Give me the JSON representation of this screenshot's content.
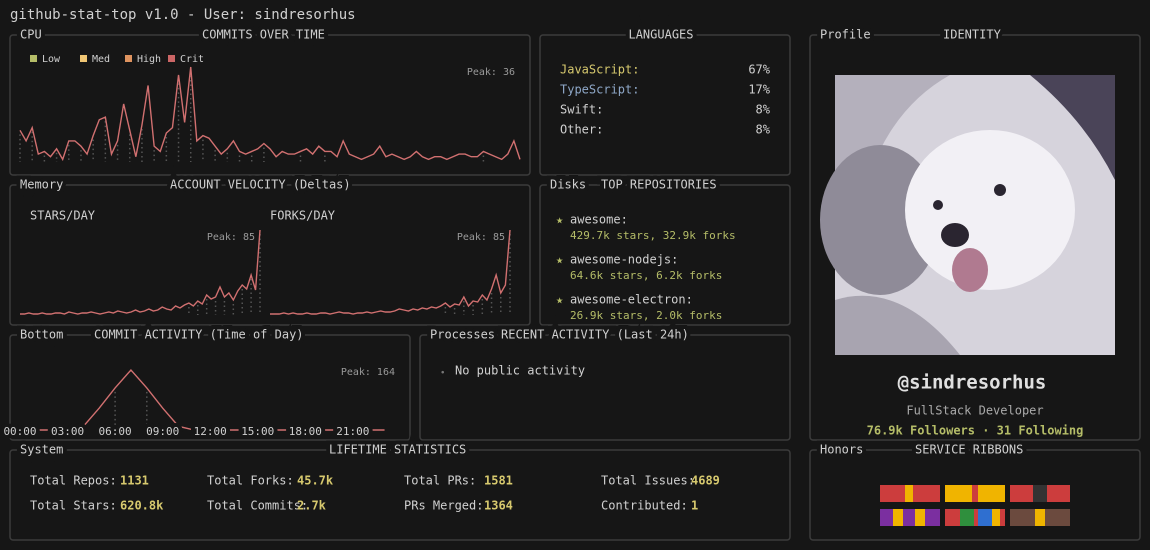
{
  "header": {
    "title": "github-stat-top v1.0 - User: sindresorhus"
  },
  "line_color": "#d17070",
  "commits": {
    "tag": "CPU",
    "title": "COMMITS OVER TIME",
    "legend": [
      {
        "name": "Low",
        "color": "#b5bd68"
      },
      {
        "name": "Med",
        "color": "#f0c674"
      },
      {
        "name": "High",
        "color": "#de935f"
      },
      {
        "name": "Crit",
        "color": "#cc6666"
      }
    ],
    "peak": "Peak: 36",
    "values": [
      12,
      8,
      13,
      3,
      4,
      2,
      5,
      1,
      8,
      8,
      6,
      3,
      10,
      16,
      17,
      3,
      8,
      22,
      12,
      2,
      14,
      29,
      6,
      4,
      11,
      13,
      33,
      15,
      36,
      8,
      10,
      9,
      6,
      3,
      5,
      8,
      4,
      3,
      4,
      5,
      7,
      5,
      2,
      4,
      3,
      3,
      4,
      5,
      3,
      6,
      4,
      4,
      2,
      8,
      3,
      2,
      1,
      2,
      3,
      6,
      2,
      3,
      2,
      1,
      2,
      4,
      2,
      1,
      2,
      2,
      1,
      2,
      3,
      3,
      2,
      2,
      4,
      3,
      2,
      1,
      3,
      8,
      1
    ]
  },
  "velocity": {
    "tag": "Memory",
    "title": "ACCOUNT VELOCITY (Deltas)",
    "stars": {
      "label": "STARS/DAY",
      "peak": "Peak: 85",
      "values": [
        1,
        1,
        2,
        1,
        1,
        2,
        1,
        1,
        2,
        2,
        1,
        3,
        2,
        1,
        2,
        2,
        3,
        2,
        1,
        2,
        3,
        2,
        4,
        3,
        2,
        3,
        5,
        3,
        4,
        6,
        4,
        5,
        8,
        6,
        5,
        9,
        7,
        10,
        12,
        9,
        14,
        11,
        20,
        16,
        18,
        28,
        18,
        22,
        15,
        24,
        30,
        26,
        40,
        25,
        85
      ]
    },
    "forks": {
      "label": "FORKS/DAY",
      "peak": "Peak: 85",
      "values": [
        1,
        1,
        1,
        2,
        1,
        2,
        1,
        1,
        2,
        1,
        1,
        2,
        2,
        1,
        2,
        3,
        2,
        2,
        1,
        2,
        2,
        3,
        2,
        3,
        4,
        3,
        3,
        4,
        6,
        5,
        4,
        6,
        5,
        7,
        6,
        8,
        7,
        9,
        12,
        8,
        11,
        10,
        18,
        9,
        14,
        13,
        20,
        15,
        26,
        40,
        22,
        30,
        85
      ]
    }
  },
  "activity": {
    "tag": "Bottom",
    "title": "COMMIT ACTIVITY (Time of Day)",
    "peak": "Peak: 164",
    "hours": [
      "00:00",
      "03:00",
      "06:00",
      "09:00",
      "12:00",
      "15:00",
      "18:00",
      "21:00"
    ],
    "values": [
      0,
      0,
      0,
      0,
      10,
      60,
      115,
      164,
      115,
      60,
      10,
      0,
      0,
      0,
      0,
      0,
      0,
      0,
      0,
      0,
      0,
      0,
      0,
      0
    ]
  },
  "languages": {
    "title": "LANGUAGES",
    "items": [
      {
        "name": "JavaScript:",
        "share": "67%",
        "color": "#d7c96e"
      },
      {
        "name": "TypeScript:",
        "share": "17%",
        "color": "#8fa8c8"
      },
      {
        "name": "Swift:",
        "share": "8%",
        "color": "#d0d0d0"
      },
      {
        "name": "Other:",
        "share": "8%",
        "color": "#d0d0d0"
      }
    ]
  },
  "repos": {
    "tag": "Disks",
    "title": "TOP REPOSITORIES",
    "items": [
      {
        "name": "awesome:",
        "detail": "429.7k stars, 32.9k forks"
      },
      {
        "name": "awesome-nodejs:",
        "detail": "64.6k stars, 6.2k forks"
      },
      {
        "name": "awesome-electron:",
        "detail": "26.9k stars, 2.0k forks"
      }
    ]
  },
  "recent": {
    "tag": "Processes",
    "title": "RECENT ACTIVITY (Last 24h)",
    "message": "No public activity"
  },
  "profile": {
    "tag": "Profile",
    "title": "IDENTITY",
    "handle": "@sindresorhus",
    "role": "FullStack Developer",
    "stats": "76.9k Followers · 31 Following"
  },
  "lifetime": {
    "tag": "System",
    "title": "LIFETIME STATISTICS",
    "items": [
      {
        "label": "Total Repos:",
        "value": "1131"
      },
      {
        "label": "Total Forks:",
        "value": "45.7k"
      },
      {
        "label": "Total PRs:",
        "value": "1581"
      },
      {
        "label": "Total Issues:",
        "value": "4689"
      },
      {
        "label": "Total Stars:",
        "value": "620.8k"
      },
      {
        "label": "Total Commits:",
        "value": "2.7k"
      },
      {
        "label": "PRs Merged:",
        "value": "1364"
      },
      {
        "label": "Contributed:",
        "value": "1"
      }
    ]
  },
  "ribbons": {
    "tag": "Honors",
    "title": "SERVICE RIBBONS"
  }
}
